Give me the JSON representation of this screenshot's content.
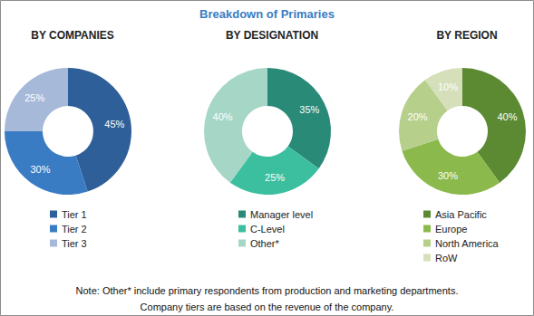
{
  "title": "Breakdown of Primaries",
  "chart_data": [
    {
      "type": "pie",
      "title": "BY COMPANIES",
      "categories": [
        "Tier 1",
        "Tier 2",
        "Tier 3"
      ],
      "values": [
        45,
        30,
        25
      ],
      "value_labels": [
        "45%",
        "30%",
        "25%"
      ],
      "colors": [
        "#2f5f98",
        "#3a7cc3",
        "#a7b9d9"
      ],
      "data_labels": true,
      "legend": "bottom"
    },
    {
      "type": "pie",
      "title": "BY DESIGNATION",
      "categories": [
        "Manager level",
        "C-Level",
        "Other*"
      ],
      "values": [
        35,
        25,
        40
      ],
      "value_labels": [
        "35%",
        "25%",
        "40%"
      ],
      "colors": [
        "#2a8a78",
        "#3cbf9f",
        "#a6d6c6"
      ],
      "data_labels": true,
      "legend": "bottom"
    },
    {
      "type": "pie",
      "title": "BY REGION",
      "categories": [
        "Asia Pacific",
        "Europe",
        "North America",
        "RoW"
      ],
      "values": [
        40,
        30,
        20,
        10
      ],
      "value_labels": [
        "40%",
        "30%",
        "20%",
        "10%"
      ],
      "colors": [
        "#5b8a33",
        "#8bb94b",
        "#b6cf8b",
        "#d5dfba"
      ],
      "data_labels": true,
      "legend": "bottom"
    }
  ],
  "notes": [
    "Note: Other* include primary respondents from production and marketing departments.",
    "Company tiers are based on the revenue of the company."
  ]
}
